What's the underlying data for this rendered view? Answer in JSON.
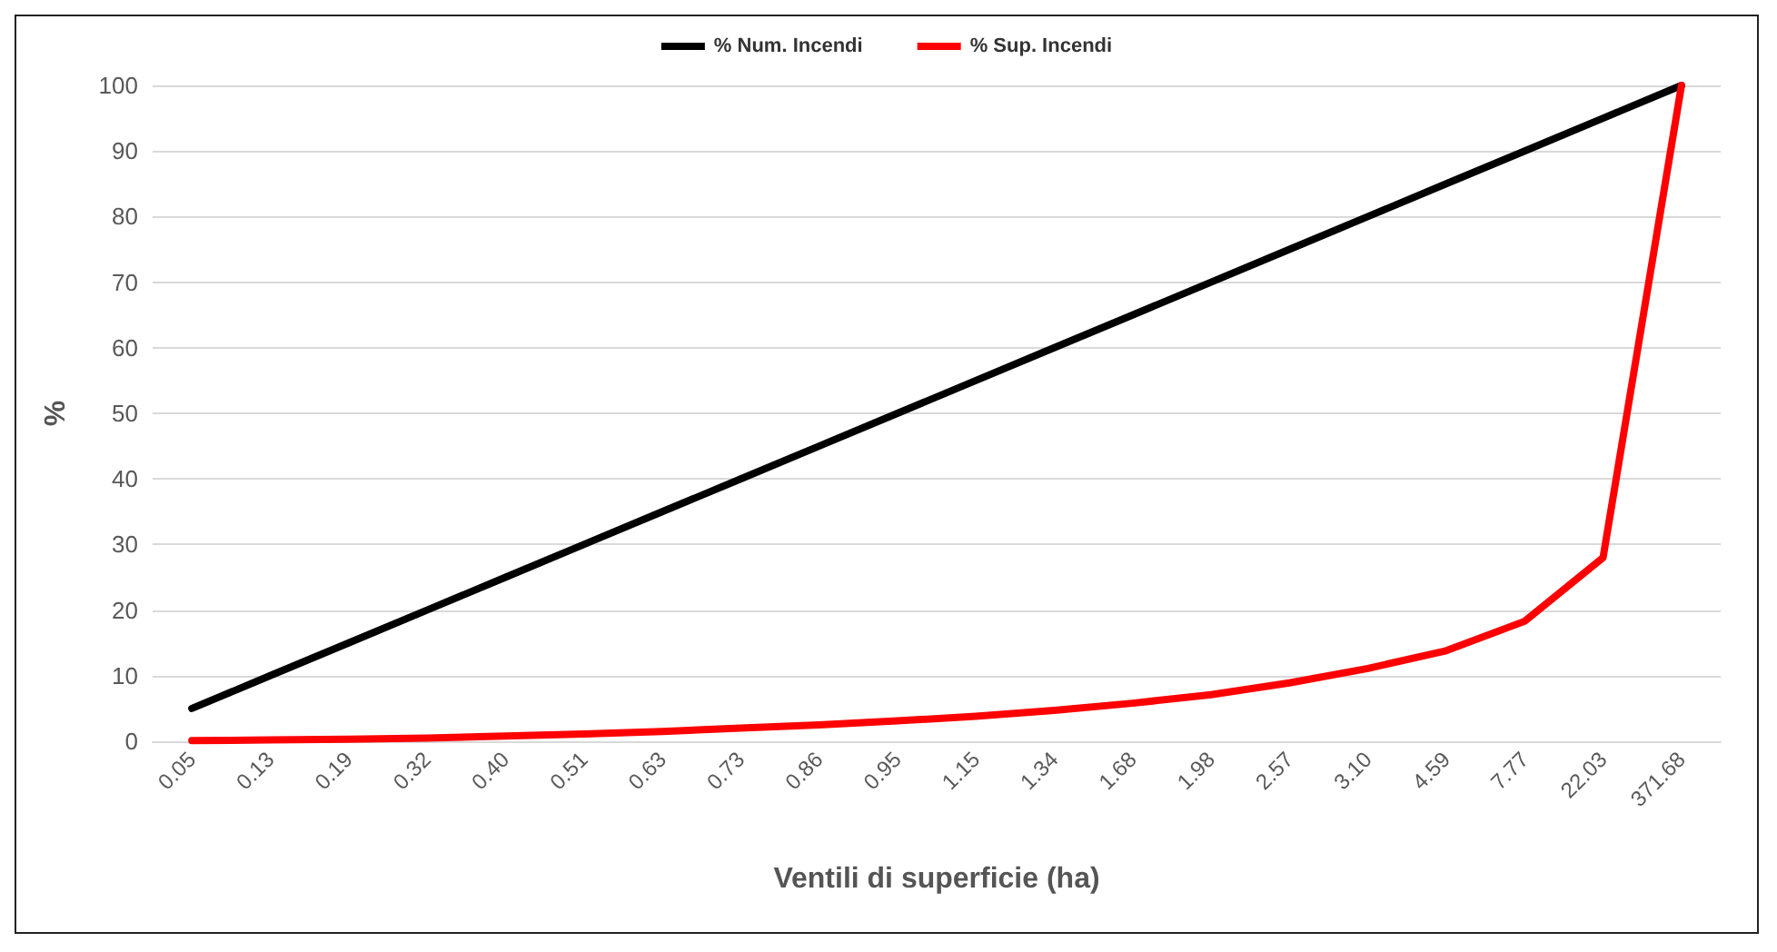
{
  "chart_data": {
    "type": "line",
    "xlabel": "Ventili di superficie (ha)",
    "ylabel": "%",
    "categories": [
      "0.05",
      "0.13",
      "0.19",
      "0.32",
      "0.40",
      "0.51",
      "0.63",
      "0.73",
      "0.86",
      "0.95",
      "1.15",
      "1.34",
      "1.68",
      "1.98",
      "2.57",
      "3.10",
      "4.59",
      "7.77",
      "22.03",
      "371.68"
    ],
    "series": [
      {
        "name": "% Num. Incendi",
        "color": "#000000",
        "values": [
          5,
          10,
          15,
          20,
          25,
          30,
          35,
          40,
          45,
          50,
          55,
          60,
          65,
          70,
          75,
          80,
          85,
          90,
          95,
          100
        ]
      },
      {
        "name": "% Sup. Incendi",
        "color": "#ff0000",
        "values": [
          0.1,
          0.2,
          0.3,
          0.5,
          0.8,
          1.1,
          1.5,
          2.0,
          2.5,
          3.1,
          3.8,
          4.7,
          5.8,
          7.1,
          8.9,
          11.1,
          13.8,
          18.3,
          28,
          100
        ]
      }
    ],
    "ylim": [
      0,
      100
    ],
    "yticks": [
      0,
      10,
      20,
      30,
      40,
      50,
      60,
      70,
      80,
      90,
      100
    ],
    "grid": "y",
    "legend": "top",
    "marker": "none",
    "line_style": "solid"
  }
}
